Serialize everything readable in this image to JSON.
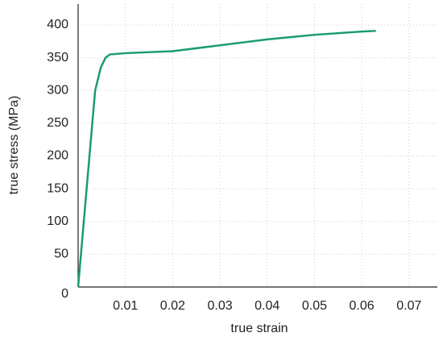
{
  "chart_data": {
    "type": "line",
    "x_label": "true strain",
    "y_label": "true stress (MPa)",
    "x": [
      0,
      0.0036,
      0.0048,
      0.0058,
      0.0067,
      0.01,
      0.02,
      0.03,
      0.04,
      0.05,
      0.06,
      0.063
    ],
    "series": [
      {
        "name": "true stress",
        "color": "#1a9b72",
        "values": [
          0,
          300,
          335,
          350,
          355,
          357,
          360,
          369,
          378,
          385,
          390,
          391
        ]
      }
    ],
    "xlim": [
      0,
      0.076
    ],
    "ylim": [
      0,
      432
    ],
    "xticks": [
      0.01,
      0.02,
      0.03,
      0.04,
      0.05,
      0.06,
      0.07
    ],
    "yticks": [
      0,
      50,
      100,
      150,
      200,
      250,
      300,
      350,
      400
    ],
    "grid": true
  }
}
